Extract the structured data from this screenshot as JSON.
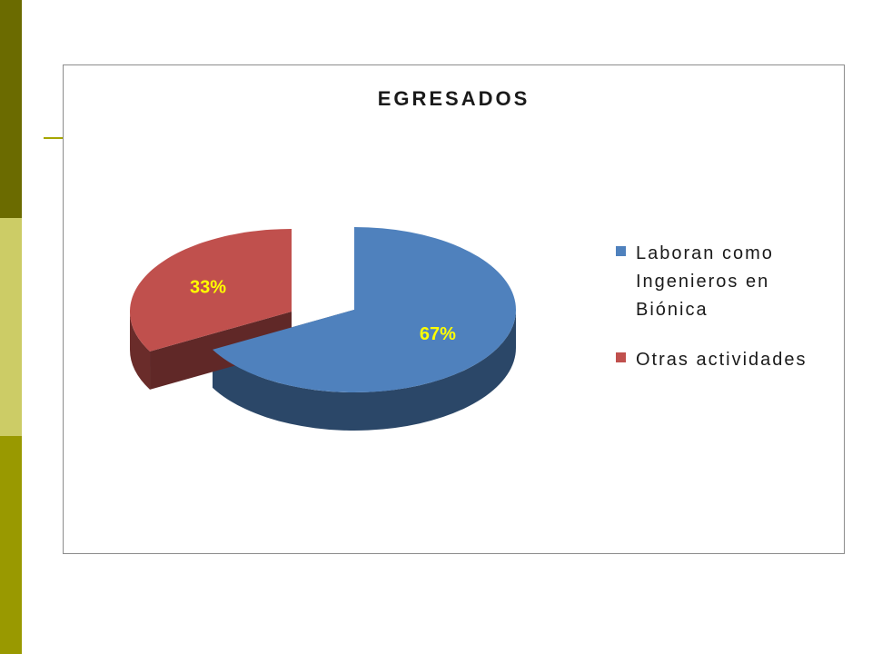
{
  "chart_data": {
    "type": "pie",
    "title": "EGRESADOS",
    "categories": [
      "Laboran como Ingenieros en Biónica",
      "Otras actividades"
    ],
    "values": [
      67,
      33
    ],
    "data_labels": [
      "67%",
      "33%"
    ],
    "colors": [
      "#4f81bd",
      "#c0504d"
    ],
    "legend_position": "right",
    "style": "3d-exploded"
  }
}
